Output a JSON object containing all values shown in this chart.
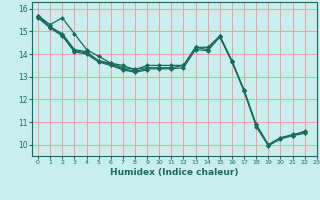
{
  "xlabel": "Humidex (Indice chaleur)",
  "bg_color": "#c8eeee",
  "grid_color": "#f0a0a0",
  "line_color": "#1a6b5a",
  "xlim": [
    -0.5,
    23
  ],
  "ylim": [
    9.5,
    16.3
  ],
  "xticks": [
    0,
    1,
    2,
    3,
    4,
    5,
    6,
    7,
    8,
    9,
    10,
    11,
    12,
    13,
    14,
    15,
    16,
    17,
    18,
    19,
    20,
    21,
    22,
    23
  ],
  "yticks": [
    10,
    11,
    12,
    13,
    14,
    15,
    16
  ],
  "line1_x": [
    0,
    1,
    2,
    3,
    4,
    5,
    6,
    7,
    8,
    9,
    10,
    11,
    12,
    13,
    14,
    15,
    16,
    17,
    18,
    19,
    20,
    21,
    22
  ],
  "line1_y": [
    15.7,
    15.3,
    15.6,
    14.9,
    14.2,
    13.9,
    13.6,
    13.5,
    13.3,
    13.5,
    13.5,
    13.5,
    13.5,
    14.3,
    14.3,
    14.8,
    13.7,
    12.4,
    10.9,
    10.0,
    10.3,
    10.4,
    10.6
  ],
  "line2_x": [
    0,
    1,
    2,
    3,
    4,
    5,
    6,
    7,
    8,
    9,
    10,
    11,
    12,
    13,
    14,
    15,
    16,
    17,
    18,
    19,
    20,
    21,
    22
  ],
  "line2_y": [
    15.7,
    15.2,
    14.9,
    14.2,
    14.1,
    13.7,
    13.6,
    13.4,
    13.35,
    13.4,
    13.4,
    13.4,
    13.5,
    14.3,
    14.2,
    14.8,
    13.7,
    12.4,
    10.85,
    10.0,
    10.3,
    10.45,
    10.55
  ],
  "line3_x": [
    0,
    1,
    2,
    3,
    4,
    5,
    6,
    7,
    8,
    9,
    10,
    11,
    12,
    13,
    14,
    15,
    16,
    17,
    18,
    19,
    20,
    21,
    22
  ],
  "line3_y": [
    15.65,
    15.2,
    14.85,
    14.15,
    14.05,
    13.7,
    13.55,
    13.35,
    13.25,
    13.35,
    13.35,
    13.35,
    13.4,
    14.2,
    14.15,
    14.75,
    13.65,
    12.35,
    10.8,
    9.95,
    10.25,
    10.4,
    10.5
  ],
  "line4_x": [
    0,
    1,
    2,
    3,
    4,
    5,
    6,
    7,
    8,
    9
  ],
  "line4_y": [
    15.6,
    15.15,
    14.8,
    14.1,
    14.0,
    13.65,
    13.5,
    13.3,
    13.2,
    13.3
  ],
  "marker_size": 2.5,
  "line_width": 0.9
}
